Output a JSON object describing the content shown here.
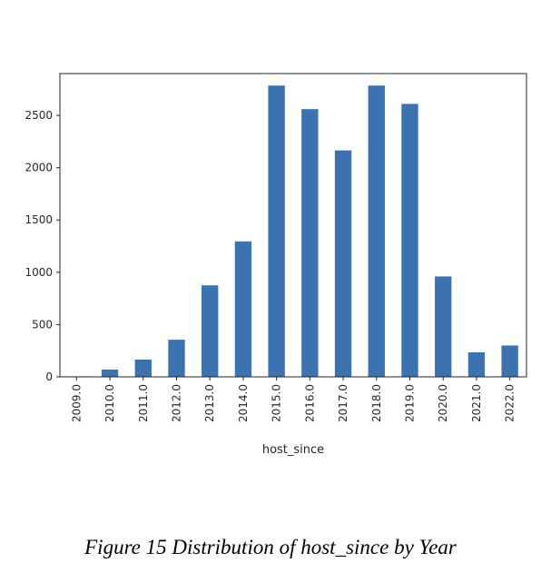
{
  "chart_data": {
    "type": "bar",
    "categories": [
      "2009.0",
      "2010.0",
      "2011.0",
      "2012.0",
      "2013.0",
      "2014.0",
      "2015.0",
      "2016.0",
      "2017.0",
      "2018.0",
      "2019.0",
      "2020.0",
      "2021.0",
      "2022.0"
    ],
    "values": [
      5,
      70,
      165,
      355,
      875,
      1295,
      2785,
      2560,
      2165,
      2785,
      2610,
      960,
      235,
      300
    ],
    "xlabel": "host_since",
    "ylabel": "",
    "ylim": [
      0,
      2900
    ],
    "yticks": [
      0,
      500,
      1000,
      1500,
      2000,
      2500
    ],
    "bar_color": "#3b73b1",
    "grid": false,
    "legend": "none"
  },
  "caption": "Figure 15 Distribution of host_since by Year"
}
